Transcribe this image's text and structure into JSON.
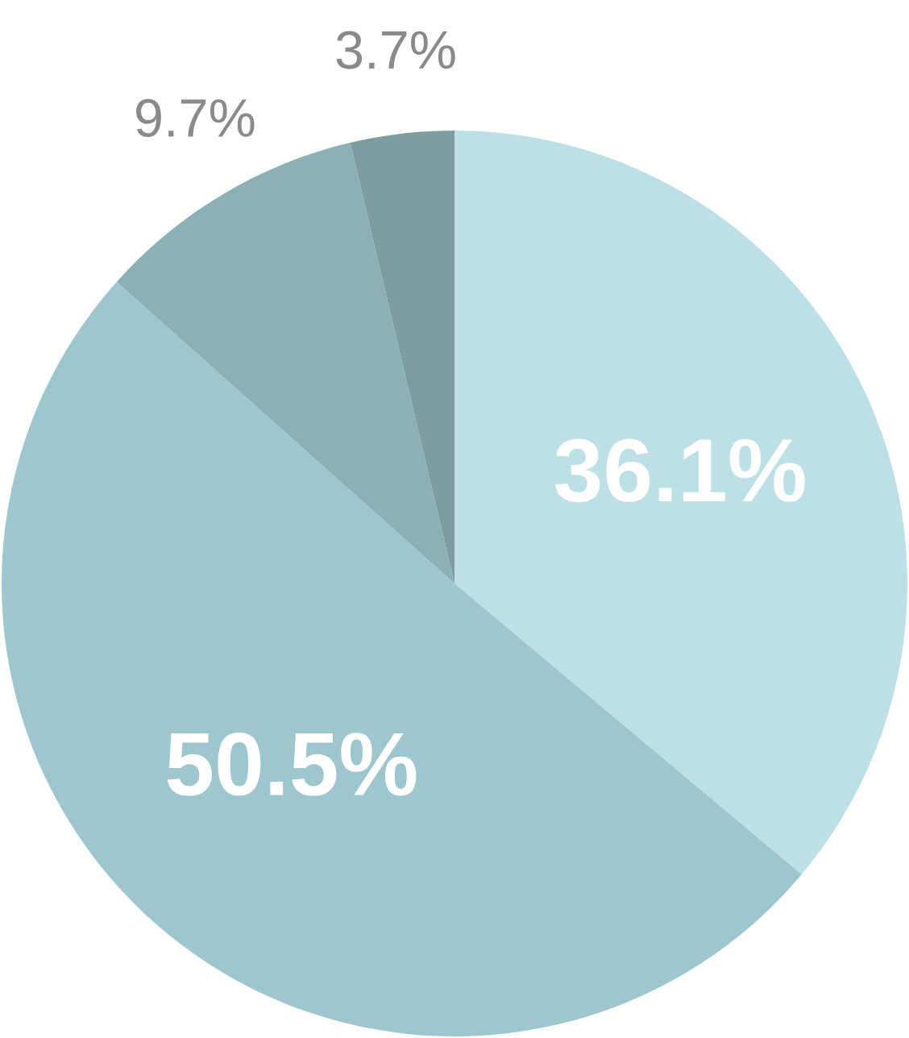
{
  "chart_data": {
    "type": "pie",
    "categories": [
      null,
      null,
      null,
      null
    ],
    "values": [
      36.1,
      50.5,
      9.7,
      3.7
    ],
    "colors": [
      "#bde0e7",
      "#9dc6cf",
      "#8bb0b6",
      "#7f9da1"
    ],
    "value_labels": [
      "36.1%",
      "50.5%",
      "9.7%",
      "3.7%"
    ]
  }
}
